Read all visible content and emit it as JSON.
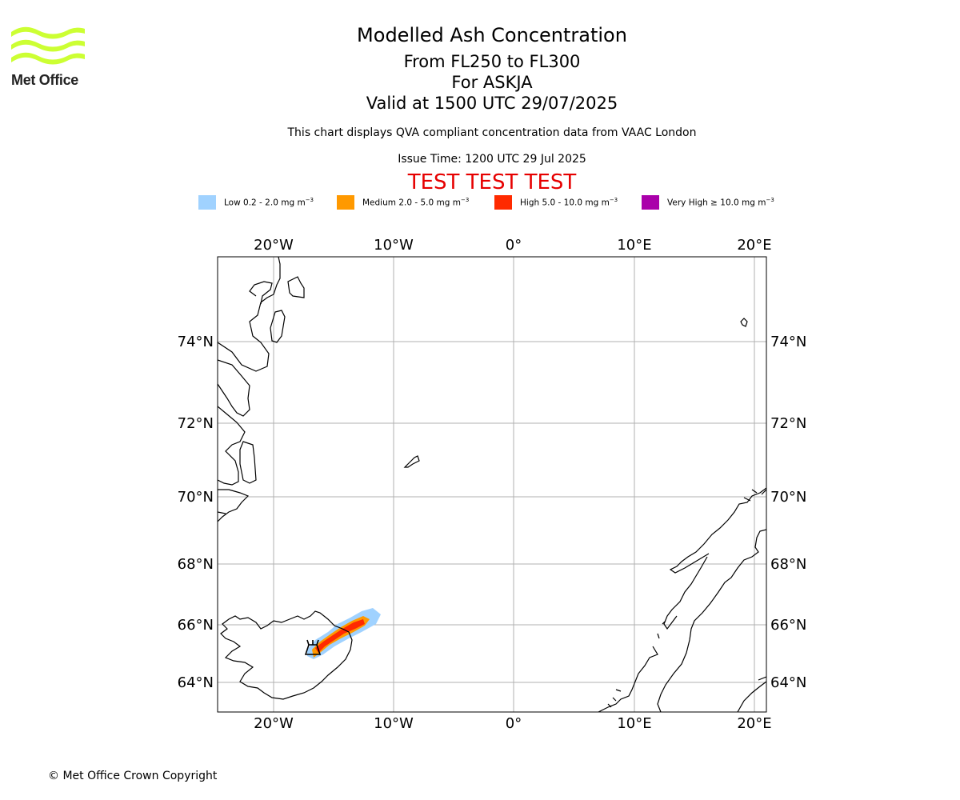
{
  "brand": {
    "name": "Met Office",
    "logo_color": "#ccff33",
    "icon": "met-office-waves-logo"
  },
  "header": {
    "title": "Modelled Ash Concentration",
    "levels": "From FL250 to FL300",
    "volcano": "For ASKJA",
    "valid": "Valid at 1500 UTC 29/07/2025",
    "note": "This chart displays QVA compliant concentration data from VAAC London",
    "issue": "Issue Time: 1200 UTC 29 Jul 2025",
    "test_banner": "TEST TEST TEST",
    "test_color": "#e60000"
  },
  "legend": [
    {
      "label": "Low 0.2 - 2.0 mg m",
      "sup": "−3",
      "color": "#a0d2ff"
    },
    {
      "label": "Medium 2.0 - 5.0 mg m",
      "sup": "−3",
      "color": "#ff9900"
    },
    {
      "label": "High 5.0 - 10.0 mg m",
      "sup": "−3",
      "color": "#ff2a00"
    },
    {
      "label": "Very High  ≥  10.0 mg m",
      "sup": "−3",
      "color": "#aa00aa"
    }
  ],
  "map": {
    "lon_ticks": [
      "20°W",
      "10°W",
      "0°",
      "10°E",
      "20°E"
    ],
    "lat_ticks": [
      "74°N",
      "72°N",
      "70°N",
      "68°N",
      "66°N",
      "64°N"
    ],
    "grid": true,
    "volcano_marker_icon": "volcano-icon"
  },
  "footer": {
    "copyright": "© Met Office Crown Copyright"
  }
}
